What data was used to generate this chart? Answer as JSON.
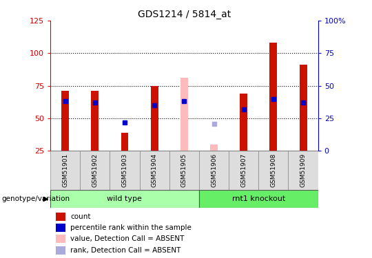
{
  "title": "GDS1214 / 5814_at",
  "samples": [
    "GSM51901",
    "GSM51902",
    "GSM51903",
    "GSM51904",
    "GSM51905",
    "GSM51906",
    "GSM51907",
    "GSM51908",
    "GSM51909"
  ],
  "groups": [
    {
      "name": "wild type",
      "indices": [
        0,
        1,
        2,
        3,
        4
      ],
      "color": "#aaffaa"
    },
    {
      "name": "rnt1 knockout",
      "indices": [
        5,
        6,
        7,
        8
      ],
      "color": "#66ee66"
    }
  ],
  "red_bars": [
    71,
    71,
    39,
    75,
    null,
    null,
    69,
    108,
    91
  ],
  "blue_squares": [
    63,
    62,
    47,
    60,
    63,
    null,
    57,
    65,
    62
  ],
  "pink_bars": [
    null,
    null,
    null,
    null,
    81,
    30,
    null,
    null,
    null
  ],
  "lavender_squares": [
    null,
    null,
    null,
    null,
    null,
    46,
    null,
    null,
    null
  ],
  "ylim": [
    25,
    125
  ],
  "yticks_left": [
    25,
    50,
    75,
    100,
    125
  ],
  "right_tick_labels": [
    "0",
    "25",
    "50",
    "75",
    "100%"
  ],
  "hlines": [
    50,
    75,
    100
  ],
  "bar_width": 0.25,
  "sq_size": 4,
  "red_color": "#cc1100",
  "pink_color": "#ffbbbb",
  "blue_color": "#0000cc",
  "lavender_color": "#aaaadd",
  "left_tick_color": "#cc0000",
  "right_tick_color": "#0000cc",
  "legend_items": [
    {
      "label": "count",
      "color": "#cc1100"
    },
    {
      "label": "percentile rank within the sample",
      "color": "#0000cc"
    },
    {
      "label": "value, Detection Call = ABSENT",
      "color": "#ffbbbb"
    },
    {
      "label": "rank, Detection Call = ABSENT",
      "color": "#aaaadd"
    }
  ],
  "group_label": "genotype/variation"
}
